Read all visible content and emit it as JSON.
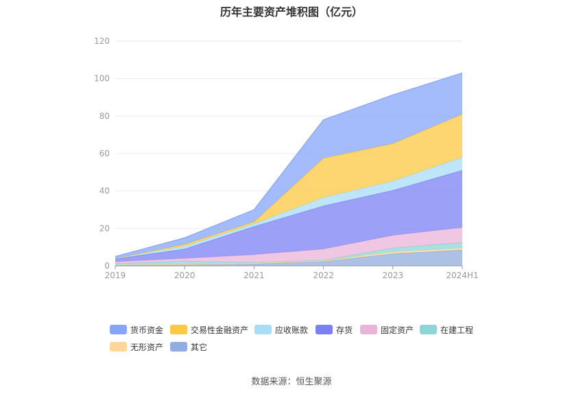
{
  "title": "历年主要资产堆积图（亿元）",
  "source": "数据来源：恒生聚源",
  "chart_data": {
    "type": "area",
    "stacked": true,
    "title": "历年主要资产堆积图（亿元）",
    "categories": [
      "2019",
      "2020",
      "2021",
      "2022",
      "2023",
      "2024H1"
    ],
    "ylim": [
      0,
      120
    ],
    "yticks": [
      0,
      20,
      40,
      60,
      80,
      100,
      120
    ],
    "grid": true,
    "legend_position": "bottom",
    "series": [
      {
        "name": "其它",
        "color": "#91acdf",
        "values": [
          0.3,
          0.5,
          1.0,
          2.3,
          6.5,
          8.5
        ]
      },
      {
        "name": "无形资产",
        "color": "#fdd79a",
        "values": [
          0.2,
          0.5,
          0.5,
          0.5,
          1.0,
          1.0
        ]
      },
      {
        "name": "在建工程",
        "color": "#8cd6d6",
        "values": [
          0.7,
          1.5,
          0.3,
          0.2,
          2.0,
          3.0
        ]
      },
      {
        "name": "固定资产",
        "color": "#eab4d8",
        "values": [
          1.0,
          1.5,
          4.2,
          6.0,
          6.8,
          8.0
        ]
      },
      {
        "name": "存货",
        "color": "#7b80f3",
        "values": [
          1.5,
          5.0,
          15.0,
          23.0,
          24.0,
          30.5
        ]
      },
      {
        "name": "应收账款",
        "color": "#a8ddf6",
        "values": [
          0.3,
          1.5,
          1.5,
          4.5,
          5.0,
          7.0
        ]
      },
      {
        "name": "交易性金融资产",
        "color": "#fdc842",
        "values": [
          0.0,
          1.0,
          1.0,
          21.0,
          20.0,
          23.0
        ]
      },
      {
        "name": "货币资金",
        "color": "#86a5f9",
        "values": [
          1.0,
          3.5,
          6.5,
          20.5,
          26.0,
          22.0
        ]
      }
    ]
  },
  "legend": [
    {
      "name": "货币资金",
      "color": "#86a5f9"
    },
    {
      "name": "交易性金融资产",
      "color": "#fdc842"
    },
    {
      "name": "应收账款",
      "color": "#a8ddf6"
    },
    {
      "name": "存货",
      "color": "#7b80f3"
    },
    {
      "name": "固定资产",
      "color": "#eab4d8"
    },
    {
      "name": "在建工程",
      "color": "#8cd6d6"
    },
    {
      "name": "无形资产",
      "color": "#fdd79a"
    },
    {
      "name": "其它",
      "color": "#91acdf"
    }
  ]
}
